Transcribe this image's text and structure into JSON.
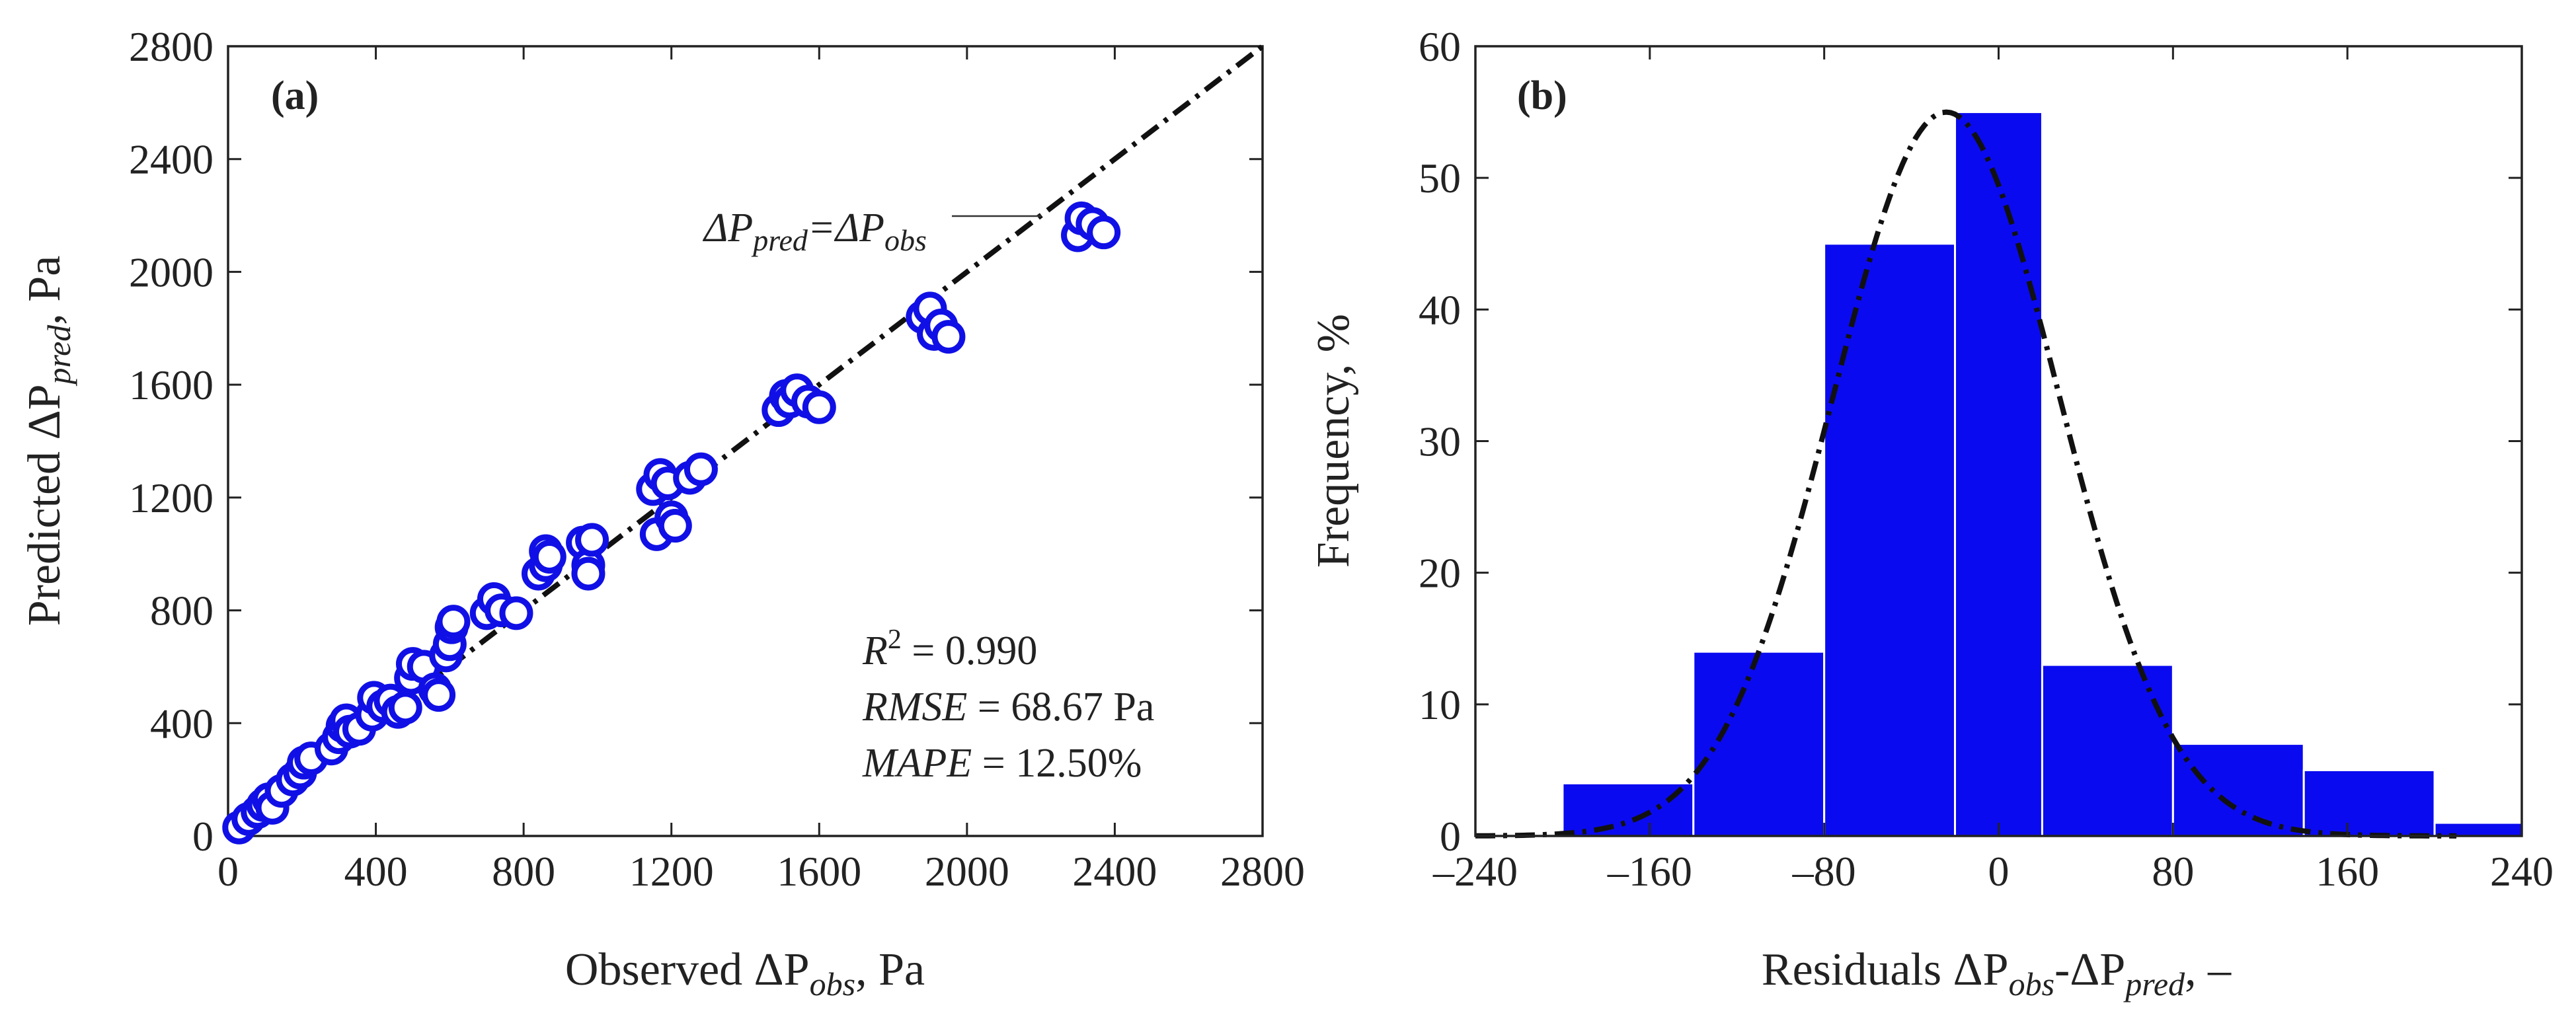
{
  "colors": {
    "marker": "#1010e6",
    "bar": "#0a0af0",
    "line": "#111111",
    "axis": "#222222"
  },
  "chart_data": [
    {
      "id": "a",
      "type": "scatter",
      "panel_label": "(a)",
      "xlabel": "Observed ΔP",
      "xlabel_sub": "obs",
      "xlabel_unit": ", Pa",
      "ylabel": "Predicted ΔP",
      "ylabel_sub": "pred",
      "ylabel_unit": ", Pa",
      "xlim": [
        0,
        2800
      ],
      "ylim": [
        0,
        2800
      ],
      "xticks": [
        0,
        400,
        800,
        1200,
        1600,
        2000,
        2400,
        2800
      ],
      "yticks": [
        0,
        400,
        800,
        1200,
        1600,
        2000,
        2400,
        2800
      ],
      "reference_line": {
        "label_lhs": "ΔP",
        "lhs_sub": "pred",
        "label_rhs": "=ΔP",
        "rhs_sub": "obs",
        "from": [
          0,
          0
        ],
        "to": [
          2800,
          2800
        ]
      },
      "stats": {
        "r2_label": "R",
        "r2_sup": "2",
        "r2_value": " = 0.990",
        "rmse_label": "RMSE",
        "rmse_value": " = 68.67 Pa",
        "mape_label": "MAPE",
        "mape_value": " = 12.50%"
      },
      "points": [
        [
          30,
          30
        ],
        [
          55,
          60
        ],
        [
          80,
          85
        ],
        [
          95,
          110
        ],
        [
          110,
          130
        ],
        [
          120,
          100
        ],
        [
          145,
          160
        ],
        [
          175,
          200
        ],
        [
          195,
          225
        ],
        [
          205,
          260
        ],
        [
          225,
          275
        ],
        [
          280,
          310
        ],
        [
          300,
          350
        ],
        [
          310,
          390
        ],
        [
          320,
          410
        ],
        [
          330,
          370
        ],
        [
          355,
          380
        ],
        [
          390,
          430
        ],
        [
          395,
          490
        ],
        [
          420,
          460
        ],
        [
          440,
          480
        ],
        [
          460,
          440
        ],
        [
          480,
          455
        ],
        [
          495,
          560
        ],
        [
          500,
          610
        ],
        [
          530,
          600
        ],
        [
          560,
          520
        ],
        [
          570,
          500
        ],
        [
          590,
          640
        ],
        [
          600,
          680
        ],
        [
          605,
          740
        ],
        [
          610,
          760
        ],
        [
          700,
          790
        ],
        [
          720,
          840
        ],
        [
          740,
          800
        ],
        [
          780,
          790
        ],
        [
          840,
          930
        ],
        [
          860,
          960
        ],
        [
          860,
          1010
        ],
        [
          870,
          990
        ],
        [
          960,
          1040
        ],
        [
          975,
          960
        ],
        [
          975,
          930
        ],
        [
          985,
          1050
        ],
        [
          1150,
          1230
        ],
        [
          1160,
          1070
        ],
        [
          1170,
          1280
        ],
        [
          1190,
          1250
        ],
        [
          1200,
          1130
        ],
        [
          1210,
          1100
        ],
        [
          1250,
          1270
        ],
        [
          1280,
          1300
        ],
        [
          1490,
          1510
        ],
        [
          1510,
          1560
        ],
        [
          1520,
          1540
        ],
        [
          1540,
          1580
        ],
        [
          1570,
          1540
        ],
        [
          1600,
          1520
        ],
        [
          1880,
          1840
        ],
        [
          1900,
          1870
        ],
        [
          1910,
          1780
        ],
        [
          1930,
          1810
        ],
        [
          1950,
          1770
        ],
        [
          2300,
          2130
        ],
        [
          2310,
          2190
        ],
        [
          2340,
          2170
        ],
        [
          2370,
          2140
        ]
      ]
    },
    {
      "id": "b",
      "type": "bar",
      "panel_label": "(b)",
      "xlabel": "Residuals ΔP",
      "xlabel_sub1": "obs",
      "xlabel_mid": "-ΔP",
      "xlabel_sub2": "pred",
      "xlabel_unit": ", –",
      "ylabel": "Frequency, %",
      "xlim": [
        -240,
        240
      ],
      "ylim": [
        0,
        60
      ],
      "xticks": [
        -240,
        -160,
        -80,
        0,
        80,
        160,
        240
      ],
      "xtick_labels": [
        "–240",
        "–160",
        "–80",
        "0",
        "80",
        "160",
        "240"
      ],
      "yticks": [
        0,
        10,
        20,
        30,
        40,
        50,
        60
      ],
      "bins": [
        {
          "from": -200,
          "to": -140,
          "value": 4
        },
        {
          "from": -140,
          "to": -80,
          "value": 14
        },
        {
          "from": -80,
          "to": -20,
          "value": 45
        },
        {
          "from": -20,
          "to": 20,
          "value": 55
        },
        {
          "from": 20,
          "to": 80,
          "value": 13
        },
        {
          "from": 80,
          "to": 140,
          "value": 7
        },
        {
          "from": 140,
          "to": 200,
          "value": 5
        },
        {
          "from": 200,
          "to": 240,
          "value": 1
        }
      ],
      "fit_curve": {
        "type": "normal",
        "mean": -24,
        "sd": 52,
        "peak": 55
      }
    }
  ]
}
